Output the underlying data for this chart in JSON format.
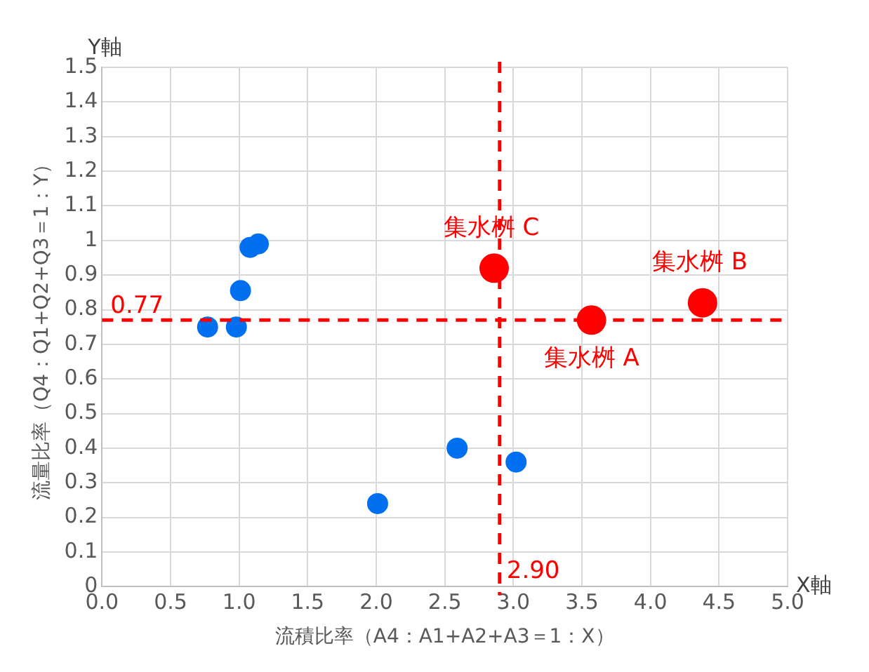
{
  "chart_data": {
    "type": "scatter",
    "xlabel": "流積比率（A4：A1+A2+A3＝1：X）",
    "ylabel": "流量比率（Q4：Q1+Q2+Q3＝1：Y）",
    "series": [
      {
        "color": "#0070f0",
        "x": [
          0.77,
          0.98,
          1.01,
          1.08,
          1.14,
          2.01,
          2.59,
          3.02
        ],
        "values": [
          0.75,
          0.75,
          0.855,
          0.98,
          0.99,
          0.24,
          0.4,
          0.36
        ]
      },
      {
        "color": "#ff0000",
        "x": [
          2.86,
          3.57,
          4.38
        ],
        "values": [
          0.92,
          0.77,
          0.82
        ]
      }
    ],
    "xlim": [
      0,
      5
    ],
    "xticks": [
      {
        "value": 0,
        "label": "0.0"
      },
      {
        "value": 0.5,
        "label": "0.5"
      },
      {
        "value": 1,
        "label": "1.0"
      },
      {
        "value": 1.5,
        "label": "1.5"
      },
      {
        "value": 2,
        "label": "2.0"
      },
      {
        "value": 2.5,
        "label": "2.5"
      },
      {
        "value": 3,
        "label": "3.0"
      },
      {
        "value": 3.5,
        "label": "3.5"
      },
      {
        "value": 4,
        "label": "4.0"
      },
      {
        "value": 4.5,
        "label": "4.5"
      },
      {
        "value": 5,
        "label": "5.0"
      }
    ],
    "ylim": [
      0,
      1.5
    ],
    "yticks": [
      0,
      0.1,
      0.2,
      0.3,
      0.4,
      0.5,
      0.6,
      0.7,
      0.8,
      0.9,
      1,
      1.1,
      1.2,
      1.3,
      1.4,
      1.5
    ],
    "ref_lines": [
      {
        "axis": "y",
        "value": 0.77,
        "label": "0.77",
        "color": "#ff0000",
        "line_style": "dashed"
      },
      {
        "axis": "x",
        "value": 2.9,
        "label": "2.90",
        "color": "#ff0000",
        "line_style": "dashed"
      }
    ],
    "annotations": [
      "Y軸",
      "X軸",
      {
        "text": "集水桝 C",
        "x": 2.86,
        "y": 0.92
      },
      {
        "text": "集水桝 A",
        "x": 3.57,
        "y": 0.77
      },
      {
        "text": "集水桝 B",
        "x": 4.38,
        "y": 0.82
      }
    ],
    "grid": true,
    "legend": false,
    "marker": "circle"
  }
}
